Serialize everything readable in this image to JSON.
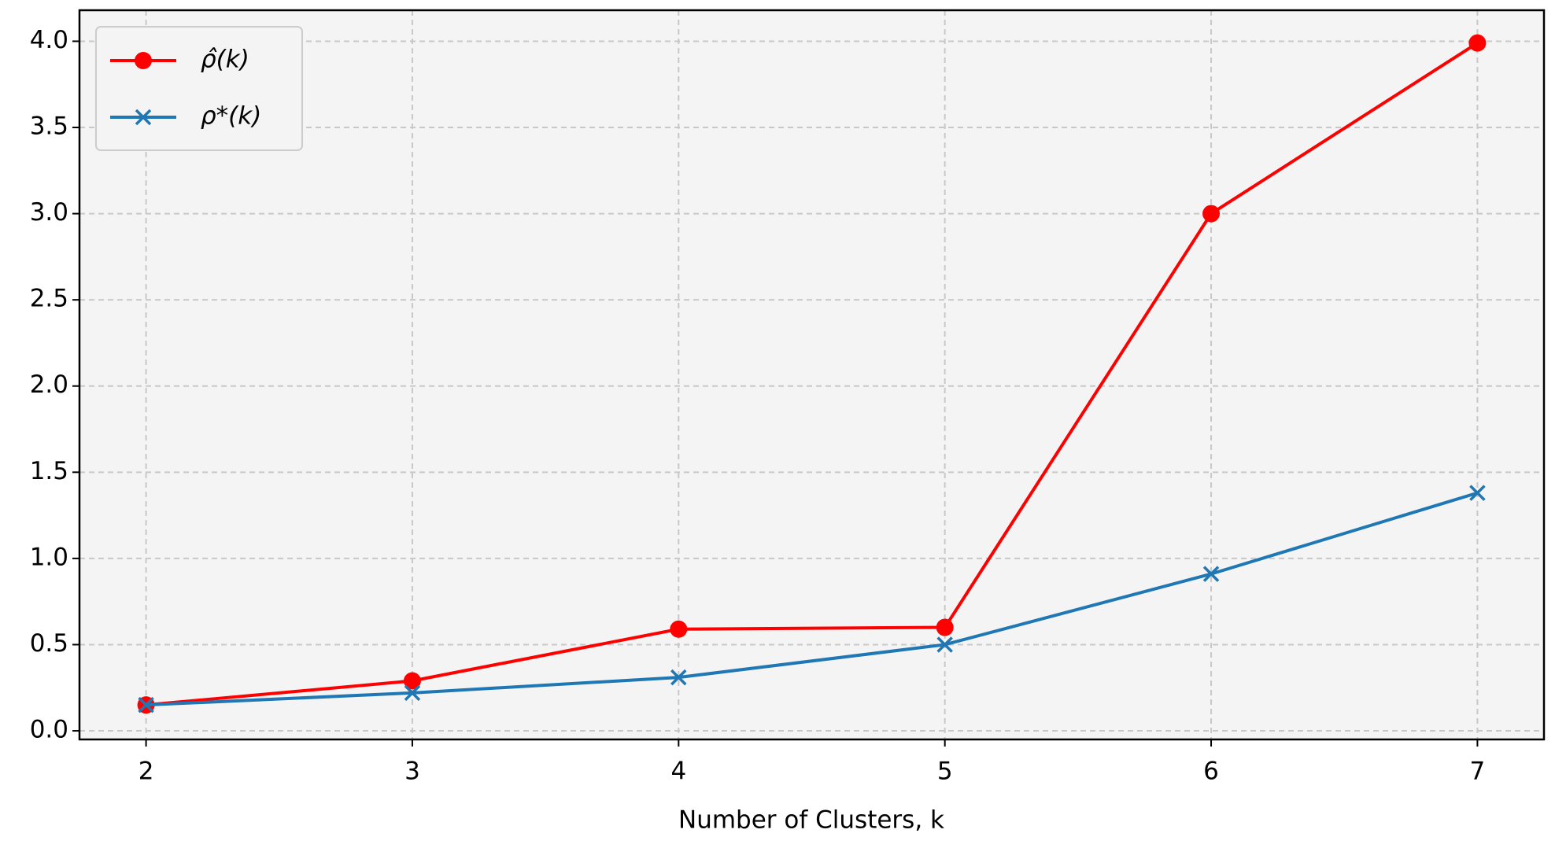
{
  "chart_data": {
    "type": "line",
    "xlabel": "Number of Clusters, k",
    "x": [
      2,
      3,
      4,
      5,
      6,
      7
    ],
    "series": [
      {
        "name": "ρ̂(k)",
        "color": "#ff0000",
        "marker": "circle",
        "values": [
          0.15,
          0.29,
          0.59,
          0.6,
          3.0,
          3.99
        ]
      },
      {
        "name": "ρ*(k)",
        "color": "#1f77b4",
        "marker": "x",
        "values": [
          0.15,
          0.22,
          0.31,
          0.5,
          0.91,
          1.38
        ]
      }
    ],
    "xlim": [
      1.75,
      7.25
    ],
    "xticks": [
      2,
      3,
      4,
      5,
      6,
      7
    ],
    "ylim": [
      -0.05,
      4.18
    ],
    "yticks": [
      {
        "value": 0,
        "label": "0.0"
      },
      {
        "value": 0.5,
        "label": "0.5"
      },
      {
        "value": 1,
        "label": "1.0"
      },
      {
        "value": 1.5,
        "label": "1.5"
      },
      {
        "value": 2,
        "label": "2.0"
      },
      {
        "value": 2.5,
        "label": "2.5"
      },
      {
        "value": 3,
        "label": "3.0"
      },
      {
        "value": 3.5,
        "label": "3.5"
      },
      {
        "value": 4,
        "label": "4.0"
      }
    ],
    "grid": true,
    "legend": "upper left"
  }
}
